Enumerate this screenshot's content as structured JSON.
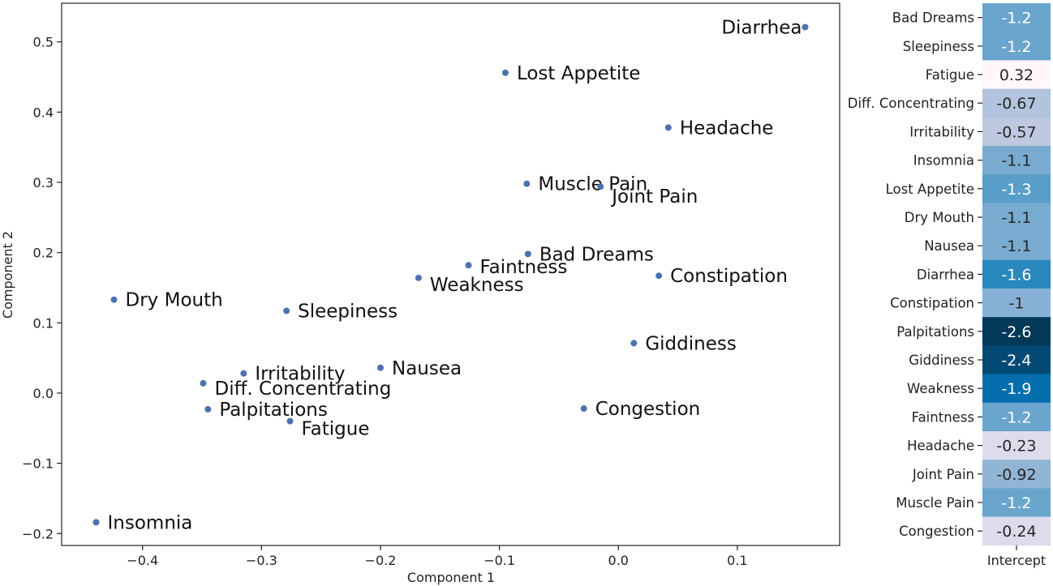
{
  "chart_data": [
    {
      "type": "scatter",
      "xlabel": "Component 1",
      "ylabel": "Component 2",
      "xlim": [
        -0.468,
        0.186
      ],
      "ylim": [
        -0.217,
        0.555
      ],
      "xticks": [
        -0.4,
        -0.3,
        -0.2,
        -0.1,
        0.0,
        0.1
      ],
      "xtick_labels": [
        "−0.4",
        "−0.3",
        "−0.2",
        "−0.1",
        "0.0",
        "0.1"
      ],
      "yticks": [
        -0.2,
        -0.1,
        0.0,
        0.1,
        0.2,
        0.3,
        0.4,
        0.5
      ],
      "ytick_labels": [
        "−0.2",
        "−0.1",
        "0.0",
        "0.1",
        "0.2",
        "0.3",
        "0.4",
        "0.5"
      ],
      "grid": false,
      "point_color": "#4c72b0",
      "points": [
        {
          "label": "Diarrhea",
          "x": 0.157,
          "y": 0.521,
          "anchor": "end"
        },
        {
          "label": "Lost Appetite",
          "x": -0.095,
          "y": 0.456,
          "anchor": "start"
        },
        {
          "label": "Headache",
          "x": 0.042,
          "y": 0.378,
          "anchor": "start"
        },
        {
          "label": "Muscle Pain",
          "x": -0.077,
          "y": 0.298,
          "anchor": "start"
        },
        {
          "label": "Joint Pain",
          "x": -0.015,
          "y": 0.294,
          "anchor": "start"
        },
        {
          "label": "Bad Dreams",
          "x": -0.076,
          "y": 0.198,
          "anchor": "start"
        },
        {
          "label": "Faintness",
          "x": -0.126,
          "y": 0.182,
          "anchor": "start"
        },
        {
          "label": "Constipation",
          "x": 0.034,
          "y": 0.167,
          "anchor": "start"
        },
        {
          "label": "Weakness",
          "x": -0.168,
          "y": 0.164,
          "anchor": "start"
        },
        {
          "label": "Dry Mouth",
          "x": -0.424,
          "y": 0.133,
          "anchor": "start"
        },
        {
          "label": "Sleepiness",
          "x": -0.279,
          "y": 0.117,
          "anchor": "start"
        },
        {
          "label": "Giddiness",
          "x": 0.013,
          "y": 0.071,
          "anchor": "start"
        },
        {
          "label": "Irritability",
          "x": -0.315,
          "y": 0.028,
          "anchor": "start"
        },
        {
          "label": "Nausea",
          "x": -0.2,
          "y": 0.036,
          "anchor": "start"
        },
        {
          "label": "Diff. Concentrating",
          "x": -0.349,
          "y": 0.014,
          "anchor": "start"
        },
        {
          "label": "Palpitations",
          "x": -0.345,
          "y": -0.023,
          "anchor": "start"
        },
        {
          "label": "Congestion",
          "x": -0.029,
          "y": -0.022,
          "anchor": "start"
        },
        {
          "label": "Fatigue",
          "x": -0.276,
          "y": -0.04,
          "anchor": "start"
        },
        {
          "label": "Insomnia",
          "x": -0.439,
          "y": -0.184,
          "anchor": "start"
        }
      ]
    },
    {
      "type": "heatmap",
      "column": "Intercept",
      "colormap": "PuBu_r",
      "vmin": -2.6,
      "vmax": 0.32,
      "rows": [
        {
          "label": "Bad Dreams",
          "value": -1.2,
          "text": "-1.2"
        },
        {
          "label": "Sleepiness",
          "value": -1.2,
          "text": "-1.2"
        },
        {
          "label": "Fatigue",
          "value": 0.32,
          "text": "0.32"
        },
        {
          "label": "Diff. Concentrating",
          "value": -0.67,
          "text": "-0.67"
        },
        {
          "label": "Irritability",
          "value": -0.57,
          "text": "-0.57"
        },
        {
          "label": "Insomnia",
          "value": -1.1,
          "text": "-1.1"
        },
        {
          "label": "Lost Appetite",
          "value": -1.3,
          "text": "-1.3"
        },
        {
          "label": "Dry Mouth",
          "value": -1.1,
          "text": "-1.1"
        },
        {
          "label": "Nausea",
          "value": -1.1,
          "text": "-1.1"
        },
        {
          "label": "Diarrhea",
          "value": -1.6,
          "text": "-1.6"
        },
        {
          "label": "Constipation",
          "value": -1.0,
          "text": "-1"
        },
        {
          "label": "Palpitations",
          "value": -2.6,
          "text": "-2.6"
        },
        {
          "label": "Giddiness",
          "value": -2.4,
          "text": "-2.4"
        },
        {
          "label": "Weakness",
          "value": -1.9,
          "text": "-1.9"
        },
        {
          "label": "Faintness",
          "value": -1.2,
          "text": "-1.2"
        },
        {
          "label": "Headache",
          "value": -0.23,
          "text": "-0.23"
        },
        {
          "label": "Joint Pain",
          "value": -0.92,
          "text": "-0.92"
        },
        {
          "label": "Muscle Pain",
          "value": -1.2,
          "text": "-1.2"
        },
        {
          "label": "Congestion",
          "value": -0.24,
          "text": "-0.24"
        }
      ]
    }
  ]
}
